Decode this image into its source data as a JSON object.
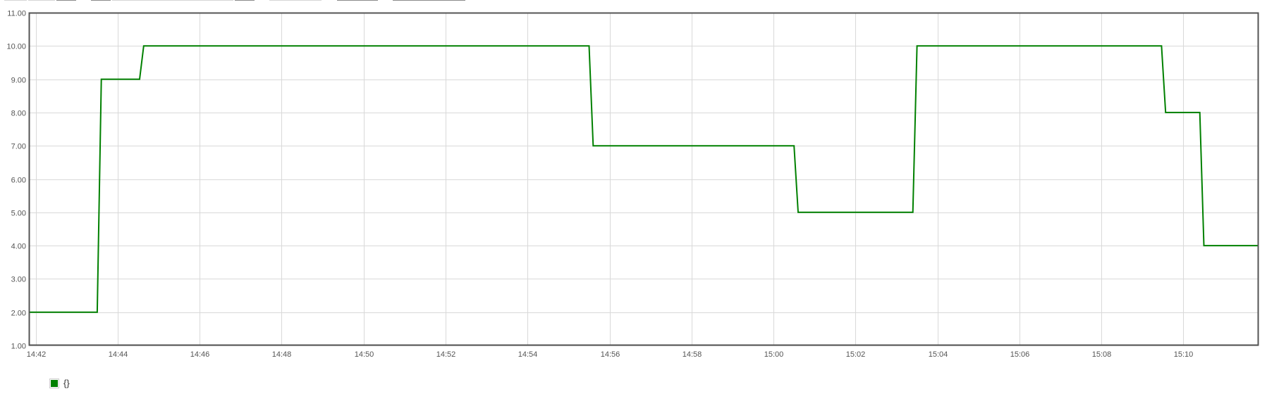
{
  "colors": {
    "series": "#008000",
    "grid": "#d9d9d9",
    "axis_border": "#545454",
    "tick_text": "#545454"
  },
  "chart_data": {
    "type": "line",
    "title": "",
    "xlabel": "",
    "ylabel": "",
    "x_axis_type": "time",
    "xlim": [
      "14:41:50",
      "15:11:50"
    ],
    "ylim": [
      1,
      11
    ],
    "grid": true,
    "legend_position": "bottom-left",
    "y_ticks": [
      "1.00",
      "2.00",
      "3.00",
      "4.00",
      "5.00",
      "6.00",
      "7.00",
      "8.00",
      "9.00",
      "10.00",
      "11.00"
    ],
    "x_ticks": [
      "14:42",
      "14:44",
      "14:46",
      "14:48",
      "14:50",
      "14:52",
      "14:54",
      "14:56",
      "14:58",
      "15:00",
      "15:02",
      "15:04",
      "15:06",
      "15:08",
      "15:10"
    ],
    "series": [
      {
        "name": "{}",
        "color": "#008000",
        "points": [
          [
            "14:41:50",
            2
          ],
          [
            "14:43:30",
            2
          ],
          [
            "14:43:36",
            9
          ],
          [
            "14:44:32",
            9
          ],
          [
            "14:44:38",
            10
          ],
          [
            "14:55:30",
            10
          ],
          [
            "14:55:36",
            7
          ],
          [
            "15:00:30",
            7
          ],
          [
            "15:00:36",
            5
          ],
          [
            "15:03:24",
            5
          ],
          [
            "15:03:30",
            10
          ],
          [
            "15:09:28",
            10
          ],
          [
            "15:09:34",
            8
          ],
          [
            "15:10:24",
            8
          ],
          [
            "15:10:30",
            4
          ],
          [
            "15:11:50",
            4
          ]
        ]
      }
    ]
  }
}
